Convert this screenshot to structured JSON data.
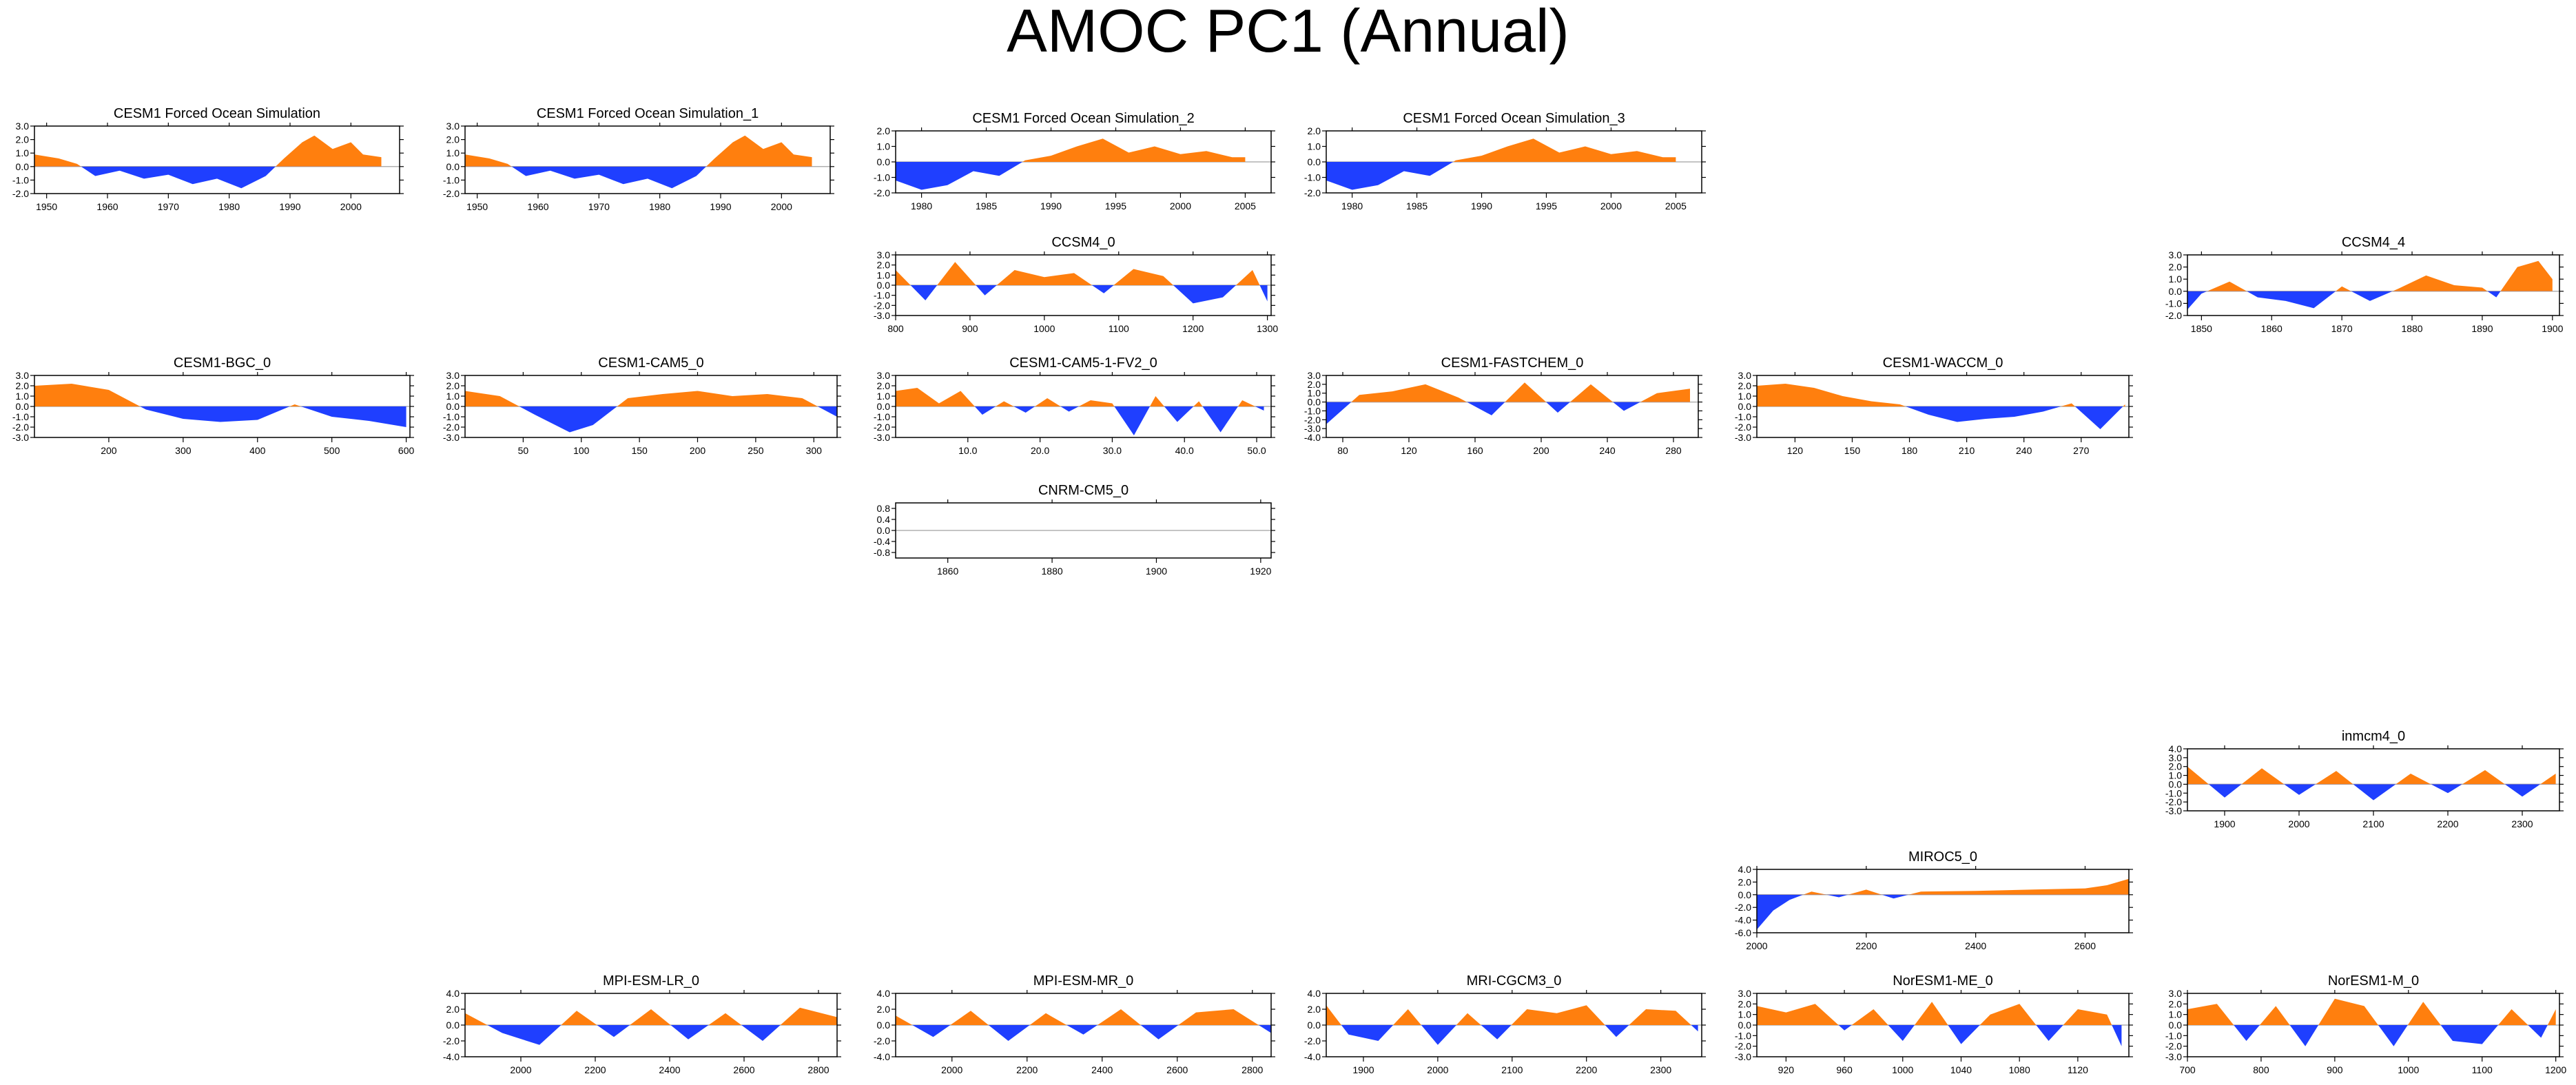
{
  "title": "AMOC PC1 (Annual)",
  "colors": {
    "positive": "#ff7f0e",
    "negative": "#1f3fff",
    "axis": "#000000",
    "zero_line": "#b0b0b0"
  },
  "chart_data": [
    {
      "type": "area",
      "title": "CESM1 Forced Ocean Simulation",
      "xlim": [
        1948,
        2008
      ],
      "ylim": [
        -2,
        3
      ],
      "x_ticks": [
        1950,
        1960,
        1970,
        1980,
        1990,
        2000
      ],
      "y_ticks": [
        3,
        2,
        1,
        0,
        -1,
        -2
      ],
      "y_tick_labels": [
        "3.0",
        "2.0",
        "1.0",
        "0.0",
        "-1.0",
        "-2.0"
      ],
      "x": [
        1948,
        1952,
        1955,
        1958,
        1962,
        1966,
        1970,
        1974,
        1978,
        1982,
        1986,
        1989,
        1992,
        1994,
        1997,
        2000,
        2002,
        2005
      ],
      "values": [
        0.9,
        0.6,
        0.2,
        -0.7,
        -0.3,
        -0.9,
        -0.6,
        -1.3,
        -0.9,
        -1.6,
        -0.7,
        0.6,
        1.8,
        2.3,
        1.3,
        1.8,
        0.9,
        0.7
      ]
    },
    {
      "type": "area",
      "title": "CESM1 Forced Ocean Simulation_1",
      "xlim": [
        1948,
        2008
      ],
      "ylim": [
        -2,
        3
      ],
      "x_ticks": [
        1950,
        1960,
        1970,
        1980,
        1990,
        2000
      ],
      "y_ticks": [
        3,
        2,
        1,
        0,
        -1,
        -2
      ],
      "y_tick_labels": [
        "3.0",
        "2.0",
        "1.0",
        "0.0",
        "-1.0",
        "-2.0"
      ],
      "x": [
        1948,
        1952,
        1955,
        1958,
        1962,
        1966,
        1970,
        1974,
        1978,
        1982,
        1986,
        1989,
        1992,
        1994,
        1997,
        2000,
        2002,
        2005
      ],
      "values": [
        0.9,
        0.6,
        0.2,
        -0.7,
        -0.3,
        -0.9,
        -0.6,
        -1.3,
        -0.9,
        -1.6,
        -0.7,
        0.6,
        1.8,
        2.3,
        1.3,
        1.8,
        0.9,
        0.7
      ]
    },
    {
      "type": "area",
      "title": "CESM1 Forced Ocean Simulation_2",
      "xlim": [
        1978,
        2007
      ],
      "ylim": [
        -2,
        2
      ],
      "x_ticks": [
        1980,
        1985,
        1990,
        1995,
        2000,
        2005
      ],
      "y_ticks": [
        2,
        1,
        0,
        -1,
        -2
      ],
      "y_tick_labels": [
        "2.0",
        "1.0",
        "0.0",
        "-1.0",
        "-2.0"
      ],
      "x": [
        1978,
        1980,
        1982,
        1984,
        1986,
        1988,
        1990,
        1992,
        1994,
        1996,
        1998,
        2000,
        2002,
        2004,
        2005
      ],
      "values": [
        -1.2,
        -1.8,
        -1.5,
        -0.6,
        -0.9,
        0.1,
        0.4,
        1.0,
        1.5,
        0.6,
        1.0,
        0.5,
        0.7,
        0.3,
        0.3
      ]
    },
    {
      "type": "area",
      "title": "CESM1 Forced Ocean Simulation_3",
      "xlim": [
        1978,
        2007
      ],
      "ylim": [
        -2,
        2
      ],
      "x_ticks": [
        1980,
        1985,
        1990,
        1995,
        2000,
        2005
      ],
      "y_ticks": [
        2,
        1,
        0,
        -1,
        -2
      ],
      "y_tick_labels": [
        "2.0",
        "1.0",
        "0.0",
        "-1.0",
        "-2.0"
      ],
      "x": [
        1978,
        1980,
        1982,
        1984,
        1986,
        1988,
        1990,
        1992,
        1994,
        1996,
        1998,
        2000,
        2002,
        2004,
        2005
      ],
      "values": [
        -1.2,
        -1.8,
        -1.5,
        -0.6,
        -0.9,
        0.1,
        0.4,
        1.0,
        1.5,
        0.6,
        1.0,
        0.5,
        0.7,
        0.3,
        0.3
      ]
    },
    {
      "type": "area",
      "title": "CCSM4_0",
      "xlim": [
        800,
        1305
      ],
      "ylim": [
        -3,
        3
      ],
      "x_ticks": [
        800,
        900,
        1000,
        1100,
        1200,
        1300
      ],
      "y_ticks": [
        3,
        2,
        1,
        0,
        -1,
        -2,
        -3
      ],
      "y_tick_labels": [
        "3.0",
        "2.0",
        "1.0",
        "0.0",
        "-1.0",
        "-2.0",
        "-3.0"
      ],
      "x": [
        800,
        840,
        880,
        920,
        960,
        1000,
        1040,
        1080,
        1120,
        1160,
        1200,
        1240,
        1280,
        1300
      ],
      "values": [
        1.5,
        -1.5,
        2.3,
        -1.0,
        1.5,
        0.8,
        1.2,
        -0.8,
        1.6,
        0.9,
        -1.8,
        -1.2,
        1.5,
        -1.6
      ]
    },
    {
      "type": "area",
      "title": "CCSM4_4",
      "xlim": [
        1848,
        1901
      ],
      "ylim": [
        -2,
        3
      ],
      "x_ticks": [
        1850,
        1860,
        1870,
        1880,
        1890,
        1900
      ],
      "y_ticks": [
        3,
        2,
        1,
        0,
        -1,
        -2
      ],
      "y_tick_labels": [
        "3.0",
        "2.0",
        "1.0",
        "0.0",
        "-1.0",
        "-2.0"
      ],
      "x": [
        1848,
        1850,
        1854,
        1858,
        1862,
        1866,
        1870,
        1874,
        1878,
        1882,
        1886,
        1890,
        1892,
        1895,
        1898,
        1900
      ],
      "values": [
        -1.5,
        -0.2,
        0.8,
        -0.5,
        -0.8,
        -1.4,
        0.4,
        -0.8,
        0.2,
        1.3,
        0.5,
        0.3,
        -0.5,
        2.0,
        2.5,
        1.0
      ]
    },
    {
      "type": "area",
      "title": "CESM1-BGC_0",
      "xlim": [
        100,
        605
      ],
      "ylim": [
        -3,
        3
      ],
      "x_ticks": [
        200,
        300,
        400,
        500,
        600
      ],
      "y_ticks": [
        3,
        2,
        1,
        0,
        -1,
        -2,
        -3
      ],
      "y_tick_labels": [
        "3.0",
        "2.0",
        "1.0",
        "0.0",
        "-1.0",
        "-2.0",
        "-3.0"
      ],
      "x": [
        100,
        150,
        200,
        250,
        300,
        350,
        400,
        450,
        500,
        550,
        600
      ],
      "values": [
        2.0,
        2.2,
        1.6,
        -0.3,
        -1.2,
        -1.5,
        -1.3,
        0.2,
        -1.0,
        -1.4,
        -2.0
      ]
    },
    {
      "type": "area",
      "title": "CESM1-CAM5_0",
      "xlim": [
        0,
        320
      ],
      "ylim": [
        -3,
        3
      ],
      "x_ticks": [
        50,
        100,
        150,
        200,
        250,
        300
      ],
      "y_ticks": [
        3,
        2,
        1,
        0,
        -1,
        -2,
        -3
      ],
      "y_tick_labels": [
        "3.0",
        "2.0",
        "1.0",
        "0.0",
        "-1.0",
        "-2.0",
        "-3.0"
      ],
      "x": [
        0,
        30,
        60,
        90,
        110,
        140,
        170,
        200,
        230,
        260,
        290,
        320
      ],
      "values": [
        1.5,
        1.0,
        -0.8,
        -2.5,
        -1.8,
        0.8,
        1.2,
        1.5,
        1.0,
        1.2,
        0.8,
        -1.0
      ]
    },
    {
      "type": "area",
      "title": "CESM1-CAM5-1-FV2_0",
      "xlim": [
        0,
        52
      ],
      "ylim": [
        -3,
        3
      ],
      "x_ticks": [
        10,
        20,
        30,
        40,
        50
      ],
      "x_tick_labels": [
        "10.0",
        "20.0",
        "30.0",
        "40.0",
        "50.0"
      ],
      "y_ticks": [
        3,
        2,
        1,
        0,
        -1,
        -2,
        -3
      ],
      "y_tick_labels": [
        "3.0",
        "2.0",
        "1.0",
        "0.0",
        "-1.0",
        "-2.0",
        "-3.0"
      ],
      "x": [
        0,
        3,
        6,
        9,
        12,
        15,
        18,
        21,
        24,
        27,
        30,
        33,
        36,
        39,
        42,
        45,
        48,
        51
      ],
      "values": [
        1.5,
        1.8,
        0.3,
        1.5,
        -0.8,
        0.5,
        -0.6,
        0.8,
        -0.5,
        0.6,
        0.3,
        -2.8,
        1.0,
        -1.5,
        0.5,
        -2.5,
        0.6,
        -0.4
      ]
    },
    {
      "type": "area",
      "title": "CESM1-FASTCHEM_0",
      "xlim": [
        70,
        295
      ],
      "ylim": [
        -4,
        3
      ],
      "x_ticks": [
        80,
        120,
        160,
        200,
        240,
        280
      ],
      "y_ticks": [
        3,
        2,
        1,
        0,
        -1,
        -2,
        -3,
        -4
      ],
      "y_tick_labels": [
        "3.0",
        "2.0",
        "1.0",
        "0.0",
        "-1.0",
        "-2.0",
        "-3.0",
        "-4.0"
      ],
      "x": [
        70,
        90,
        110,
        130,
        150,
        170,
        190,
        210,
        230,
        250,
        270,
        290
      ],
      "values": [
        -2.5,
        0.8,
        1.2,
        2.0,
        0.5,
        -1.5,
        2.2,
        -1.2,
        2.0,
        -1.0,
        1.0,
        1.5
      ]
    },
    {
      "type": "area",
      "title": "CESM1-WACCM_0",
      "xlim": [
        100,
        295
      ],
      "ylim": [
        -3,
        3
      ],
      "x_ticks": [
        120,
        150,
        180,
        210,
        240,
        270
      ],
      "y_ticks": [
        3,
        2,
        1,
        0,
        -1,
        -2,
        -3
      ],
      "y_tick_labels": [
        "3.0",
        "2.0",
        "1.0",
        "0.0",
        "-1.0",
        "-2.0",
        "-3.0"
      ],
      "x": [
        100,
        115,
        130,
        145,
        160,
        175,
        190,
        205,
        220,
        235,
        250,
        265,
        280,
        293
      ],
      "values": [
        2.0,
        2.2,
        1.8,
        1.0,
        0.5,
        0.2,
        -0.8,
        -1.5,
        -1.2,
        -1.0,
        -0.5,
        0.3,
        -2.2,
        0.2
      ]
    },
    {
      "type": "area",
      "title": "CNRM-CM5_0",
      "xlim": [
        1850,
        1922
      ],
      "ylim": [
        -1,
        1
      ],
      "x_ticks": [
        1860,
        1880,
        1900,
        1920
      ],
      "y_ticks": [
        0.8,
        0.4,
        0,
        -0.4,
        -0.8
      ],
      "y_tick_labels": [
        "0.8",
        "0.4",
        "0.0",
        "-0.4",
        "-0.8"
      ],
      "x": [
        1850,
        1922
      ],
      "values": [
        0,
        0
      ]
    },
    {
      "type": "area",
      "title": "inmcm4_0",
      "xlim": [
        1850,
        2350
      ],
      "ylim": [
        -3,
        4
      ],
      "x_ticks": [
        1900,
        2000,
        2100,
        2200,
        2300
      ],
      "y_ticks": [
        4,
        3,
        2,
        1,
        0,
        -1,
        -2,
        -3
      ],
      "y_tick_labels": [
        "4.0",
        "3.0",
        "2.0",
        "1.0",
        "0.0",
        "-1.0",
        "-2.0",
        "-3.0"
      ],
      "x": [
        1850,
        1900,
        1950,
        2000,
        2050,
        2100,
        2150,
        2200,
        2250,
        2300,
        2345
      ],
      "values": [
        2.0,
        -1.5,
        1.8,
        -1.2,
        1.5,
        -1.8,
        1.2,
        -1.0,
        1.6,
        -1.4,
        1.2
      ]
    },
    {
      "type": "area",
      "title": "MIROC5_0",
      "xlim": [
        2000,
        2680
      ],
      "ylim": [
        -6,
        4
      ],
      "x_ticks": [
        2000,
        2200,
        2400,
        2600
      ],
      "y_ticks": [
        4,
        2,
        0,
        -2,
        -4,
        -6
      ],
      "y_tick_labels": [
        "4.0",
        "2.0",
        "0.0",
        "-2.0",
        "-4.0",
        "-6.0"
      ],
      "x": [
        2000,
        2030,
        2060,
        2100,
        2150,
        2200,
        2250,
        2300,
        2400,
        2500,
        2600,
        2640,
        2680
      ],
      "values": [
        -5.5,
        -2.5,
        -0.8,
        0.5,
        -0.4,
        0.8,
        -0.6,
        0.5,
        0.6,
        0.8,
        1.0,
        1.5,
        2.5
      ]
    },
    {
      "type": "area",
      "title": "MPI-ESM-LR_0",
      "xlim": [
        1850,
        2850
      ],
      "ylim": [
        -4,
        4
      ],
      "x_ticks": [
        2000,
        2200,
        2400,
        2600,
        2800
      ],
      "y_ticks": [
        4,
        2,
        0,
        -2,
        -4
      ],
      "y_tick_labels": [
        "4.0",
        "2.0",
        "0.0",
        "-2.0",
        "-4.0"
      ],
      "x": [
        1850,
        1950,
        2050,
        2150,
        2250,
        2350,
        2450,
        2550,
        2650,
        2750,
        2850
      ],
      "values": [
        1.5,
        -1.0,
        -2.5,
        1.8,
        -1.5,
        2.0,
        -1.8,
        1.5,
        -2.0,
        2.2,
        1.0
      ]
    },
    {
      "type": "area",
      "title": "MPI-ESM-MR_0",
      "xlim": [
        1850,
        2850
      ],
      "ylim": [
        -4,
        4
      ],
      "x_ticks": [
        2000,
        2200,
        2400,
        2600,
        2800
      ],
      "y_ticks": [
        4,
        2,
        0,
        -2,
        -4
      ],
      "y_tick_labels": [
        "4.0",
        "2.0",
        "0.0",
        "-2.0",
        "-4.0"
      ],
      "x": [
        1850,
        1950,
        2050,
        2150,
        2250,
        2350,
        2450,
        2550,
        2650,
        2750,
        2850
      ],
      "values": [
        1.2,
        -1.5,
        1.8,
        -2.0,
        1.5,
        -1.2,
        2.0,
        -1.8,
        1.6,
        2.0,
        -1.0
      ]
    },
    {
      "type": "area",
      "title": "MRI-CGCM3_0",
      "xlim": [
        1850,
        2355
      ],
      "ylim": [
        -4,
        4
      ],
      "x_ticks": [
        1900,
        2000,
        2100,
        2200,
        2300
      ],
      "y_ticks": [
        4,
        2,
        0,
        -2,
        -4
      ],
      "y_tick_labels": [
        "4.0",
        "2.0",
        "0.0",
        "-2.0",
        "-4.0"
      ],
      "x": [
        1850,
        1880,
        1920,
        1960,
        2000,
        2040,
        2080,
        2120,
        2160,
        2200,
        2240,
        2280,
        2320,
        2350
      ],
      "values": [
        2.5,
        -1.2,
        -2.0,
        2.0,
        -2.5,
        1.5,
        -1.8,
        2.0,
        1.5,
        2.5,
        -1.5,
        2.0,
        1.8,
        -0.8
      ]
    },
    {
      "type": "area",
      "title": "NorESM1-ME_0",
      "xlim": [
        900,
        1155
      ],
      "ylim": [
        -3,
        3
      ],
      "x_ticks": [
        920,
        960,
        1000,
        1040,
        1080,
        1120
      ],
      "y_ticks": [
        3,
        2,
        1,
        0,
        -1,
        -2,
        -3
      ],
      "y_tick_labels": [
        "3.0",
        "2.0",
        "1.0",
        "0.0",
        "-1.0",
        "-2.0",
        "-3.0"
      ],
      "x": [
        900,
        920,
        940,
        960,
        980,
        1000,
        1020,
        1040,
        1060,
        1080,
        1100,
        1120,
        1140,
        1150
      ],
      "values": [
        1.8,
        1.2,
        2.0,
        -0.5,
        1.5,
        -1.5,
        2.2,
        -1.8,
        1.0,
        2.0,
        -1.5,
        1.5,
        1.0,
        -2.0
      ]
    },
    {
      "type": "area",
      "title": "NorESM1-M_0",
      "xlim": [
        700,
        1205
      ],
      "ylim": [
        -3,
        3
      ],
      "x_ticks": [
        700,
        800,
        900,
        1000,
        1100,
        1200
      ],
      "y_ticks": [
        3,
        2,
        1,
        0,
        -1,
        -2,
        -3
      ],
      "y_tick_labels": [
        "3.0",
        "2.0",
        "1.0",
        "0.0",
        "-1.0",
        "-2.0",
        "-3.0"
      ],
      "x": [
        700,
        740,
        780,
        820,
        860,
        900,
        940,
        980,
        1020,
        1060,
        1100,
        1140,
        1180,
        1200
      ],
      "values": [
        1.5,
        2.0,
        -1.5,
        1.8,
        -2.0,
        2.5,
        1.8,
        -2.0,
        2.2,
        -1.5,
        -1.8,
        1.5,
        -1.2,
        1.5
      ]
    }
  ]
}
